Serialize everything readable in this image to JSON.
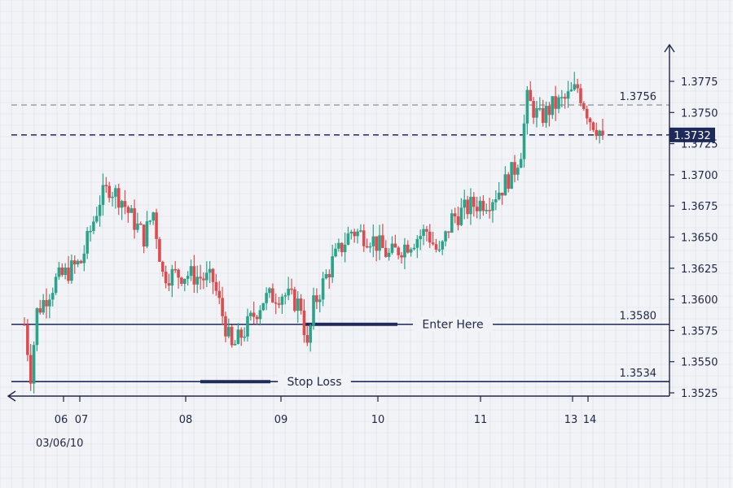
{
  "colors": {
    "background": "#f2f3f6",
    "grid": "#d9dde7",
    "up": "#2aa38a",
    "down": "#e04a4f",
    "axis": "#1f2745",
    "level_line": "#1f2a5c",
    "dashed_gray": "#a4a7ad",
    "price_badge": "#1f2a5c"
  },
  "chart_data": {
    "type": "candlestick",
    "title": "",
    "date_label": "03/06/10",
    "x_ticks": [
      "06",
      "07",
      "08",
      "09",
      "10",
      "11",
      "13",
      "14"
    ],
    "y_ticks": [
      "1.3525",
      "1.3550",
      "1.3575",
      "1.3600",
      "1.3625",
      "1.3650",
      "1.3675",
      "1.3700",
      "1.3725",
      "1.3750",
      "1.3775"
    ],
    "ylim": [
      1.3525,
      1.3775
    ],
    "grid": true,
    "current_price": {
      "value": 1.3732,
      "label": "1.3732"
    },
    "levels": [
      {
        "name": "resistance",
        "value": 1.3756,
        "label": "1.3756",
        "style": "dashed",
        "annotation": ""
      },
      {
        "name": "entry",
        "value": 1.358,
        "label": "1.3580",
        "style": "solid",
        "annotation": "Enter Here"
      },
      {
        "name": "stop-loss",
        "value": 1.3534,
        "label": "1.3534",
        "style": "solid",
        "annotation": "Stop Loss"
      }
    ],
    "path_points": [
      [
        0,
        1.358
      ],
      [
        2,
        1.354
      ],
      [
        4,
        1.359
      ],
      [
        10,
        1.3615
      ],
      [
        18,
        1.363
      ],
      [
        24,
        1.368
      ],
      [
        27,
        1.369
      ],
      [
        31,
        1.368
      ],
      [
        33,
        1.367
      ],
      [
        38,
        1.365
      ],
      [
        41,
        1.367
      ],
      [
        44,
        1.362
      ],
      [
        52,
        1.362
      ],
      [
        60,
        1.3615
      ],
      [
        66,
        1.356
      ],
      [
        70,
        1.3575
      ],
      [
        76,
        1.36
      ],
      [
        82,
        1.3605
      ],
      [
        88,
        1.3595
      ],
      [
        90,
        1.356
      ],
      [
        92,
        1.3595
      ],
      [
        98,
        1.363
      ],
      [
        104,
        1.3655
      ],
      [
        110,
        1.365
      ],
      [
        116,
        1.3635
      ],
      [
        122,
        1.3645
      ],
      [
        128,
        1.3655
      ],
      [
        132,
        1.3635
      ],
      [
        136,
        1.3665
      ],
      [
        142,
        1.3675
      ],
      [
        148,
        1.368
      ],
      [
        152,
        1.369
      ],
      [
        156,
        1.3705
      ],
      [
        158,
        1.372
      ],
      [
        160,
        1.376
      ],
      [
        164,
        1.3745
      ],
      [
        168,
        1.3755
      ],
      [
        172,
        1.376
      ],
      [
        176,
        1.377
      ],
      [
        180,
        1.3745
      ],
      [
        184,
        1.3732
      ]
    ],
    "n_candles": 185
  }
}
